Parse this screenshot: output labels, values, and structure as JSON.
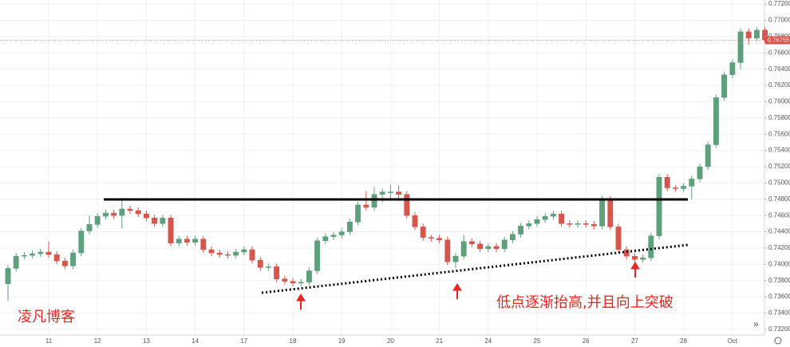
{
  "chart_data": {
    "type": "candlestick",
    "watermark": "凌凡博客",
    "annotation": "低点逐渐抬高,并且向上突破",
    "categories": [
      null,
      null,
      null,
      null,
      null,
      "11",
      null,
      null,
      null,
      null,
      null,
      "12",
      null,
      null,
      null,
      null,
      null,
      "13",
      null,
      null,
      null,
      null,
      null,
      "14",
      null,
      null,
      null,
      null,
      null,
      "17",
      null,
      null,
      null,
      null,
      null,
      "18",
      null,
      null,
      null,
      null,
      null,
      "19",
      null,
      null,
      null,
      null,
      null,
      "20",
      null,
      null,
      null,
      null,
      null,
      "21",
      null,
      null,
      null,
      null,
      null,
      "24",
      null,
      null,
      null,
      null,
      null,
      "25",
      null,
      null,
      null,
      null,
      null,
      "26",
      null,
      null,
      null,
      null,
      null,
      "27",
      null,
      null,
      null,
      null,
      null,
      "28",
      null,
      null,
      null,
      null,
      null,
      "Oct",
      null,
      null,
      null,
      null
    ],
    "series": [
      {
        "up_color": "#5e9f7c",
        "down_color": "#d6564b",
        "open": [
          0.7376,
          0.7395,
          0.741,
          0.7411,
          0.7413,
          0.7415,
          0.7412,
          0.7404,
          0.7398,
          0.7414,
          0.7441,
          0.7449,
          0.7459,
          0.7463,
          0.746,
          0.7468,
          0.7466,
          0.7462,
          0.7457,
          0.745,
          0.7457,
          0.7426,
          0.7431,
          0.7427,
          0.7431,
          0.7418,
          0.7414,
          0.7412,
          0.7411,
          0.7415,
          0.7418,
          0.7405,
          0.7396,
          0.7397,
          0.7382,
          0.7379,
          0.7377,
          0.7378,
          0.7392,
          0.7429,
          0.7434,
          0.7436,
          0.744,
          0.7452,
          0.7473,
          0.747,
          0.7486,
          0.7489,
          0.7489,
          0.7486,
          0.746,
          0.7446,
          0.7433,
          0.7432,
          0.743,
          0.7403,
          0.741,
          0.7428,
          0.7425,
          0.7419,
          0.7422,
          0.7419,
          0.743,
          0.7437,
          0.7447,
          0.745,
          0.7455,
          0.7459,
          0.7462,
          0.745,
          0.7449,
          0.745,
          0.7449,
          0.7447,
          0.748,
          0.7446,
          0.7418,
          0.741,
          0.7406,
          0.7408,
          0.7435,
          0.7507,
          0.7494,
          0.7493,
          0.7496,
          0.7505,
          0.752,
          0.7547,
          0.7605,
          0.7633,
          0.7648,
          0.7686,
          0.7678,
          0.7688
        ],
        "high": [
          0.7399,
          0.7414,
          0.7415,
          0.7417,
          0.7419,
          0.7428,
          0.7416,
          0.7408,
          0.7418,
          0.7445,
          0.746,
          0.7463,
          0.7467,
          0.7467,
          0.748,
          0.7472,
          0.747,
          0.7466,
          0.7461,
          0.7461,
          0.7461,
          0.7435,
          0.7435,
          0.7435,
          0.7435,
          0.7422,
          0.7418,
          0.7416,
          0.7419,
          0.7422,
          0.7422,
          0.7409,
          0.7401,
          0.7401,
          0.7386,
          0.7383,
          0.7382,
          0.7396,
          0.7433,
          0.7438,
          0.744,
          0.7444,
          0.7456,
          0.7477,
          0.749,
          0.7495,
          0.7493,
          0.7498,
          0.7497,
          0.749,
          0.7464,
          0.745,
          0.7436,
          0.7436,
          0.7434,
          0.7414,
          0.7436,
          0.7432,
          0.7429,
          0.7426,
          0.7426,
          0.7434,
          0.7441,
          0.7451,
          0.7454,
          0.7459,
          0.7463,
          0.7466,
          0.7466,
          0.7454,
          0.7454,
          0.7454,
          0.7453,
          0.7484,
          0.7484,
          0.745,
          0.7422,
          0.7414,
          0.7412,
          0.7439,
          0.7511,
          0.7511,
          0.7497,
          0.75,
          0.7509,
          0.7524,
          0.7551,
          0.7609,
          0.7637,
          0.7652,
          0.769,
          0.769,
          0.7692,
          0.7692
        ],
        "low": [
          0.7355,
          0.7391,
          0.7406,
          0.7407,
          0.7409,
          0.7408,
          0.74,
          0.7394,
          0.7394,
          0.741,
          0.7437,
          0.7445,
          0.7455,
          0.7456,
          0.7444,
          0.7462,
          0.7458,
          0.7453,
          0.7446,
          0.7446,
          0.7422,
          0.7422,
          0.7423,
          0.7423,
          0.7414,
          0.741,
          0.7408,
          0.7407,
          0.7407,
          0.7411,
          0.7401,
          0.7392,
          0.7392,
          0.7378,
          0.7375,
          0.7373,
          0.7373,
          0.7374,
          0.7388,
          0.7425,
          0.743,
          0.7432,
          0.7436,
          0.7448,
          0.7466,
          0.7466,
          0.7476,
          0.748,
          0.7478,
          0.7456,
          0.7442,
          0.7429,
          0.7428,
          0.7426,
          0.7399,
          0.7395,
          0.7406,
          0.7421,
          0.7415,
          0.7415,
          0.7415,
          0.7415,
          0.7426,
          0.7433,
          0.7443,
          0.7446,
          0.7451,
          0.7455,
          0.7446,
          0.7445,
          0.7445,
          0.7445,
          0.7443,
          0.7443,
          0.7442,
          0.7414,
          0.7406,
          0.74,
          0.7402,
          0.7404,
          0.7431,
          0.749,
          0.7489,
          0.7489,
          0.748,
          0.7501,
          0.7516,
          0.7543,
          0.7601,
          0.7629,
          0.764,
          0.767,
          0.7674,
          0.7672
        ],
        "close": [
          0.7395,
          0.741,
          0.7411,
          0.7413,
          0.7415,
          0.7412,
          0.7404,
          0.7398,
          0.7414,
          0.7441,
          0.7449,
          0.7459,
          0.7463,
          0.746,
          0.7468,
          0.7466,
          0.7462,
          0.7457,
          0.745,
          0.7457,
          0.7426,
          0.7431,
          0.7427,
          0.7431,
          0.7418,
          0.7414,
          0.7412,
          0.7411,
          0.7415,
          0.7418,
          0.7405,
          0.7396,
          0.7397,
          0.7382,
          0.7379,
          0.7377,
          0.7378,
          0.7392,
          0.7429,
          0.7434,
          0.7436,
          0.744,
          0.7452,
          0.7473,
          0.747,
          0.7486,
          0.7489,
          0.7489,
          0.7486,
          0.746,
          0.7446,
          0.7433,
          0.7432,
          0.743,
          0.7403,
          0.741,
          0.7428,
          0.7425,
          0.7419,
          0.7422,
          0.7419,
          0.743,
          0.7437,
          0.7447,
          0.745,
          0.7455,
          0.7459,
          0.7462,
          0.745,
          0.7449,
          0.745,
          0.7449,
          0.7447,
          0.748,
          0.7446,
          0.7418,
          0.741,
          0.7406,
          0.7408,
          0.7435,
          0.7507,
          0.7494,
          0.7493,
          0.7496,
          0.7505,
          0.752,
          0.7547,
          0.7605,
          0.7633,
          0.7648,
          0.7686,
          0.7678,
          0.7688,
          0.7676
        ]
      }
    ],
    "last_price": {
      "value": 0.76755,
      "label": "0.76755"
    },
    "ylim": [
      0.7313,
      0.7725
    ],
    "yticks": [
      {
        "value": 0.732,
        "label": "0.73200"
      },
      {
        "value": 0.734,
        "label": "0.73400"
      },
      {
        "value": 0.736,
        "label": "0.73600"
      },
      {
        "value": 0.738,
        "label": "0.73800"
      },
      {
        "value": 0.74,
        "label": "0.74000"
      },
      {
        "value": 0.742,
        "label": "0.74200"
      },
      {
        "value": 0.744,
        "label": "0.74400"
      },
      {
        "value": 0.746,
        "label": "0.74600"
      },
      {
        "value": 0.748,
        "label": "0.74800"
      },
      {
        "value": 0.75,
        "label": "0.75000"
      },
      {
        "value": 0.752,
        "label": "0.75200"
      },
      {
        "value": 0.754,
        "label": "0.75400"
      },
      {
        "value": 0.756,
        "label": "0.75600"
      },
      {
        "value": 0.758,
        "label": "0.75800"
      },
      {
        "value": 0.76,
        "label": "0.76000"
      },
      {
        "value": 0.762,
        "label": "0.76200"
      },
      {
        "value": 0.764,
        "label": "0.76400"
      },
      {
        "value": 0.766,
        "label": "0.76600"
      },
      {
        "value": 0.768,
        "label": "0.76800"
      },
      {
        "value": 0.77,
        "label": "0.77000"
      },
      {
        "value": 0.772,
        "label": "0.77200"
      }
    ],
    "grid": true
  }
}
